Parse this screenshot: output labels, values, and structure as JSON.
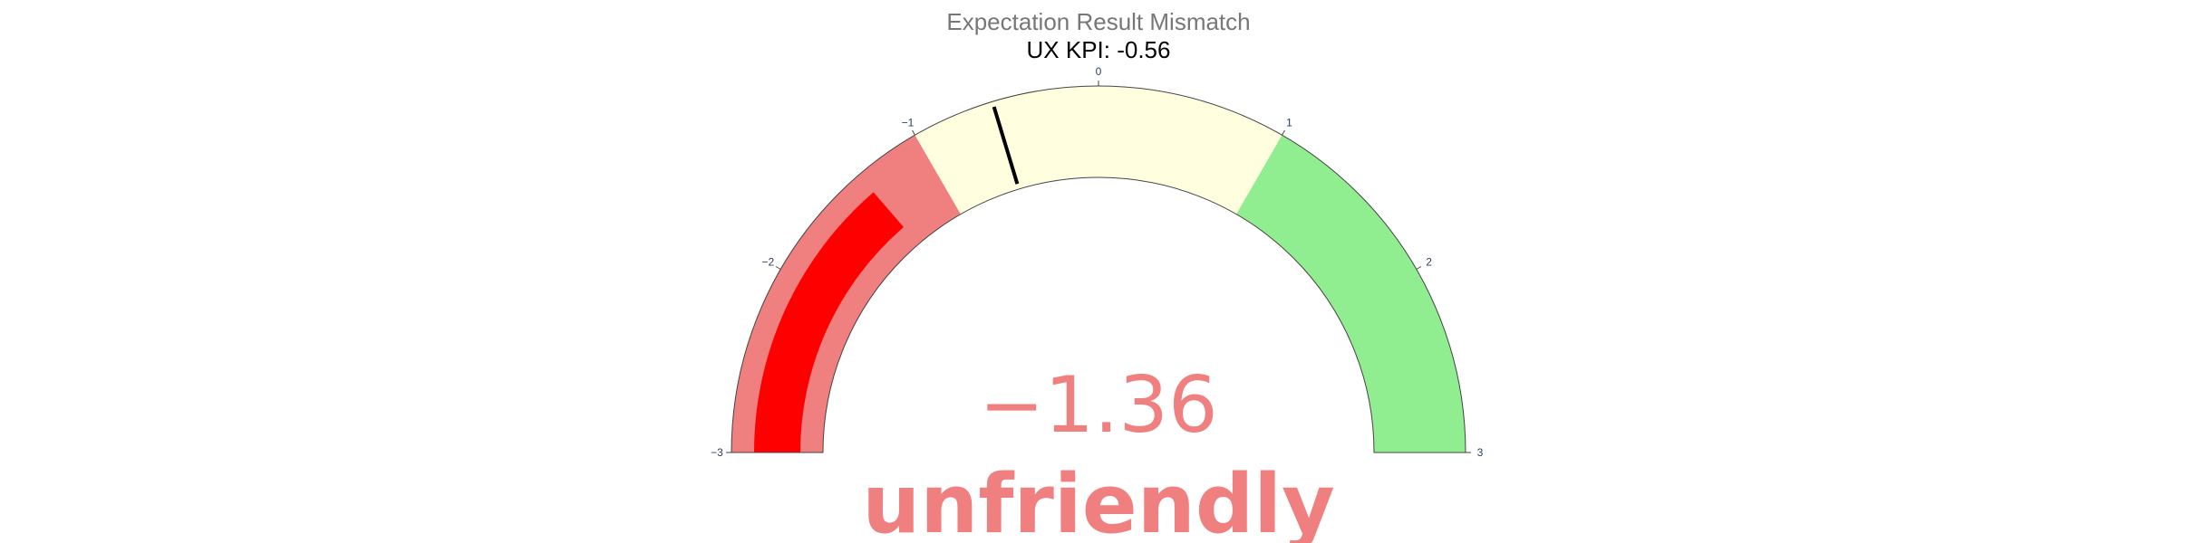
{
  "title": "Expectation Result Mismatch",
  "subtitle": "UX KPI: -0.56",
  "chart_data": {
    "type": "gauge",
    "title": "Expectation Result Mismatch",
    "subtitle": "UX KPI: -0.56",
    "range": [
      -3,
      3
    ],
    "value": -1.36,
    "value_label": "−1.36",
    "threshold": -0.56,
    "category_label": "unfriendly",
    "steps": [
      {
        "range": [
          -3,
          -1
        ],
        "color": "#f08080"
      },
      {
        "range": [
          -1,
          1
        ],
        "color": "#ffffe0"
      },
      {
        "range": [
          1,
          3
        ],
        "color": "#90ee90"
      }
    ],
    "tick_values": [
      -3,
      -2,
      -1,
      0,
      1,
      2,
      3
    ],
    "tick_labels": [
      "−3",
      "−2",
      "−1",
      "0",
      "1",
      "2",
      "3"
    ],
    "colors": {
      "bar": "#ff0000",
      "threshold": "#000000",
      "value_text": "#f08080",
      "title_text": "#777777",
      "subtitle_text": "#000000",
      "tick_text": "#2a3f5f",
      "border": "#444444"
    }
  }
}
